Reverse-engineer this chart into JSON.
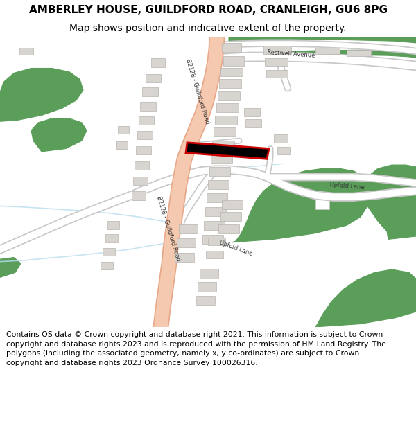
{
  "title_line1": "AMBERLEY HOUSE, GUILDFORD ROAD, CRANLEIGH, GU6 8PG",
  "title_line2": "Map shows position and indicative extent of the property.",
  "footer_text": "Contains OS data © Crown copyright and database right 2021. This information is subject to Crown copyright and database rights 2023 and is reproduced with the permission of HM Land Registry. The polygons (including the associated geometry, namely x, y co-ordinates) are subject to Crown copyright and database rights 2023 Ordnance Survey 100026316.",
  "background_color": "#ffffff",
  "map_bg_color": "#f5f3f0",
  "road_main_color": "#f5c9b0",
  "road_main_outline": "#e8a888",
  "road_minor_color": "#ffffff",
  "road_minor_outline": "#c8c8c8",
  "building_color": "#d8d5d0",
  "building_outline_color": "#b8b5b0",
  "green_color": "#5a9e5a",
  "water_color": "#b0d4e8",
  "property_color": "#cc0000",
  "title_fontsize": 11,
  "subtitle_fontsize": 10,
  "footer_fontsize": 7.8,
  "label_fontsize": 6.0
}
